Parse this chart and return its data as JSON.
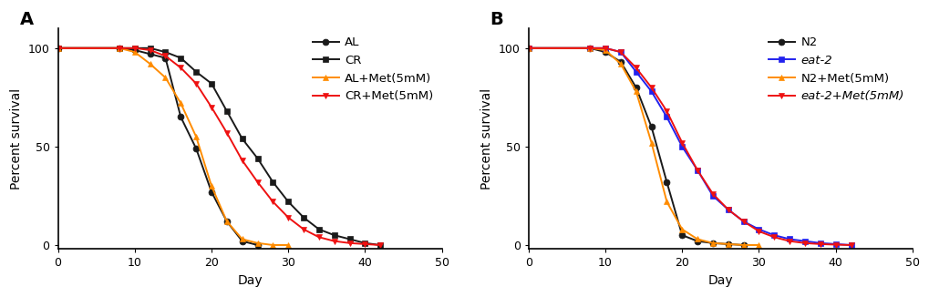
{
  "panel_A": {
    "title": "A",
    "xlabel": "Day",
    "ylabel": "Percent survival",
    "xlim": [
      0,
      50
    ],
    "ylim": [
      -2,
      110
    ],
    "yticks": [
      0,
      50,
      100
    ],
    "xticks": [
      0,
      10,
      20,
      30,
      40,
      50
    ],
    "series": [
      {
        "label": "AL",
        "color": "#1a1a1a",
        "marker": "o",
        "x": [
          0,
          8,
          10,
          12,
          14,
          16,
          18,
          20,
          22,
          24,
          26
        ],
        "y": [
          100,
          100,
          99,
          97,
          95,
          65,
          49,
          27,
          12,
          2,
          0
        ]
      },
      {
        "label": "CR",
        "color": "#1a1a1a",
        "marker": "s",
        "x": [
          0,
          8,
          10,
          12,
          14,
          16,
          18,
          20,
          22,
          24,
          26,
          28,
          30,
          32,
          34,
          36,
          38,
          40,
          42
        ],
        "y": [
          100,
          100,
          100,
          100,
          98,
          95,
          88,
          82,
          68,
          54,
          44,
          32,
          22,
          14,
          8,
          5,
          3,
          1,
          0
        ]
      },
      {
        "label": "AL+Met(5mM)",
        "color": "#FF8C00",
        "marker": "^",
        "x": [
          0,
          8,
          10,
          12,
          14,
          16,
          18,
          20,
          22,
          24,
          26,
          28,
          30
        ],
        "y": [
          100,
          100,
          98,
          92,
          85,
          72,
          55,
          30,
          12,
          3,
          1,
          0,
          0
        ]
      },
      {
        "label": "CR+Met(5mM)",
        "color": "#EE1111",
        "marker": "v",
        "x": [
          0,
          8,
          10,
          12,
          14,
          16,
          18,
          20,
          22,
          24,
          26,
          28,
          30,
          32,
          34,
          36,
          38,
          40,
          42
        ],
        "y": [
          100,
          100,
          100,
          99,
          96,
          90,
          82,
          70,
          57,
          43,
          32,
          22,
          14,
          8,
          4,
          2,
          1,
          0.5,
          0
        ]
      }
    ]
  },
  "panel_B": {
    "title": "B",
    "xlabel": "Day",
    "ylabel": "Percent survival",
    "xlim": [
      0,
      50
    ],
    "ylim": [
      -2,
      110
    ],
    "yticks": [
      0,
      50,
      100
    ],
    "xticks": [
      0,
      10,
      20,
      30,
      40,
      50
    ],
    "series": [
      {
        "label": "N2",
        "color": "#1a1a1a",
        "marker": "o",
        "italic": false,
        "x": [
          0,
          8,
          10,
          12,
          14,
          16,
          18,
          20,
          22,
          24,
          26,
          28
        ],
        "y": [
          100,
          100,
          98,
          93,
          80,
          60,
          32,
          5,
          2,
          1,
          0.5,
          0
        ]
      },
      {
        "label": "eat-2",
        "color": "#2222EE",
        "marker": "s",
        "italic": true,
        "x": [
          0,
          8,
          10,
          12,
          14,
          16,
          18,
          20,
          22,
          24,
          26,
          28,
          30,
          32,
          34,
          36,
          38,
          40,
          42
        ],
        "y": [
          100,
          100,
          100,
          98,
          88,
          78,
          65,
          50,
          38,
          25,
          18,
          12,
          8,
          5,
          3,
          2,
          1,
          0.5,
          0
        ]
      },
      {
        "label": "N2+Met(5mM)",
        "color": "#FF8C00",
        "marker": "^",
        "italic": false,
        "x": [
          0,
          8,
          10,
          12,
          14,
          16,
          18,
          20,
          22,
          24,
          26,
          28,
          30
        ],
        "y": [
          100,
          100,
          99,
          92,
          78,
          52,
          22,
          8,
          3,
          1,
          0.5,
          0,
          0
        ]
      },
      {
        "label": "eat-2+Met(5mM)",
        "color": "#EE1111",
        "marker": "v",
        "italic": true,
        "x": [
          0,
          8,
          10,
          12,
          14,
          16,
          18,
          20,
          22,
          24,
          26,
          28,
          30,
          32,
          34,
          36,
          38,
          40,
          42
        ],
        "y": [
          100,
          100,
          100,
          98,
          90,
          80,
          68,
          52,
          38,
          26,
          18,
          12,
          7,
          4,
          2,
          1,
          0.5,
          0.2,
          0
        ]
      }
    ]
  },
  "background_color": "#ffffff",
  "font_size": 9.5,
  "label_font_size": 10,
  "tick_font_size": 9,
  "line_width": 1.4,
  "marker_size": 5
}
